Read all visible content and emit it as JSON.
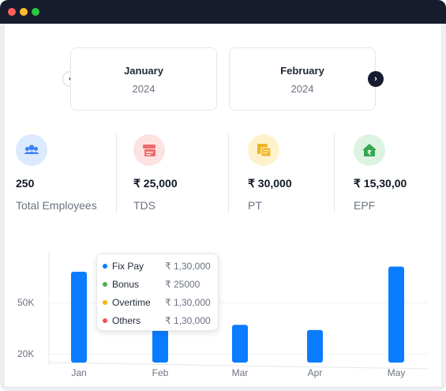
{
  "window": {
    "title_bar_colors": {
      "close": "#ff5f57",
      "minimize": "#febc2e",
      "maximize": "#28c840"
    }
  },
  "months": [
    {
      "month": "January",
      "year": "2024"
    },
    {
      "month": "February",
      "year": "2024"
    }
  ],
  "nav": {
    "prev_icon": "chevron-left-icon",
    "next_icon": "chevron-right-icon"
  },
  "stats": [
    {
      "value": "250",
      "label": "Total Employees",
      "icon": "users-icon",
      "icon_bg": "#dbeafe",
      "icon_color": "#3b82f6"
    },
    {
      "value": "₹ 25,000",
      "label": "TDS",
      "icon": "tax-icon",
      "icon_bg": "#fde2e2",
      "icon_color": "#ef6b6b"
    },
    {
      "value": "₹ 30,000",
      "label": "PT",
      "icon": "tax-document-icon",
      "icon_bg": "#fdf2cc",
      "icon_color": "#f0b429"
    },
    {
      "value": "₹ 15,30,00",
      "label": "EPF",
      "icon": "home-rupee-icon",
      "icon_bg": "#dcf3e2",
      "icon_color": "#34a853"
    }
  ],
  "chart_data": {
    "type": "bar",
    "categories": [
      "Jan",
      "Feb",
      "Mar",
      "Apr",
      "May"
    ],
    "values": [
      68000,
      35000,
      37000,
      34000,
      71000
    ],
    "y_tick_labels": [
      "50K",
      "20K"
    ],
    "y_ticks": [
      50000,
      20000
    ],
    "ylim": [
      15000,
      80000
    ],
    "bar_color": "#0a7cff",
    "grid": true
  },
  "tooltip": {
    "rows": [
      {
        "name": "Fix Pay",
        "amount": "₹ 1,30,000",
        "color": "#0a7cff"
      },
      {
        "name": "Bonus",
        "amount": "₹ 25000",
        "color": "#4caf50"
      },
      {
        "name": "Overtime",
        "amount": "₹ 1,30,000",
        "color": "#f5b800"
      },
      {
        "name": "Others",
        "amount": "₹ 1,30,000",
        "color": "#ef5350"
      }
    ]
  }
}
